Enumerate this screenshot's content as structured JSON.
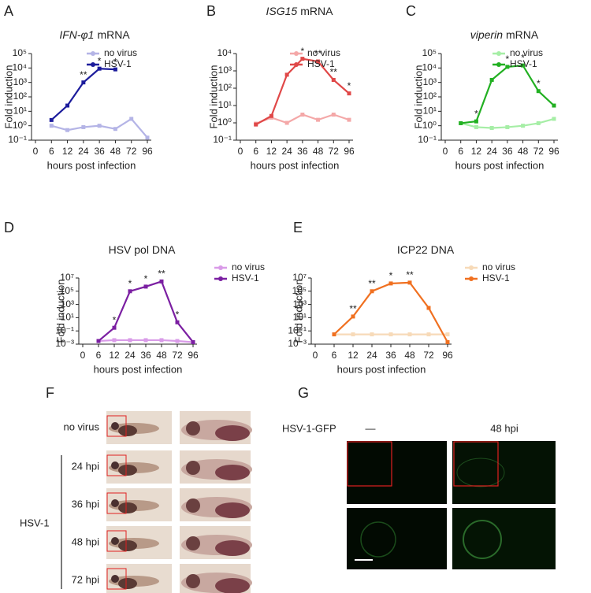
{
  "chart_data": [
    {
      "panel": "A",
      "type": "line",
      "title": [
        {
          "text": "IFN-φ1",
          "italic": true
        },
        {
          "text": "mRNA"
        }
      ],
      "xlabel": "hours post infection",
      "ylabel": "Fold induction",
      "yscale": "log",
      "categories": [
        "0",
        "6",
        "12",
        "24",
        "36",
        "48",
        "72",
        "96"
      ],
      "ylim": [
        0.1,
        100000
      ],
      "yticks": [
        {
          "value": 0.1,
          "label": "10⁻¹"
        },
        {
          "value": 1,
          "label": "10⁰"
        },
        {
          "value": 10,
          "label": "10¹"
        },
        {
          "value": 100,
          "label": "10²"
        },
        {
          "value": 1000,
          "label": "10³"
        },
        {
          "value": 10000,
          "label": "10⁴"
        },
        {
          "value": 100000,
          "label": "10⁵"
        }
      ],
      "legend": "top-right",
      "series": [
        {
          "name": "no virus",
          "color": "#b4b4e6",
          "values": [
            null,
            1,
            0.5,
            0.8,
            1,
            0.6,
            3,
            0.15
          ]
        },
        {
          "name": "HSV-1",
          "color": "#1c1c9c",
          "values": [
            null,
            2.5,
            25,
            1000,
            9000,
            8000,
            null,
            null
          ]
        }
      ],
      "annotations": [
        {
          "x": "24",
          "text": "**"
        },
        {
          "x": "36",
          "text": "*"
        },
        {
          "x": "48",
          "text": "*"
        }
      ]
    },
    {
      "panel": "B",
      "type": "line",
      "title": [
        {
          "text": "ISG15",
          "italic": true
        },
        {
          "text": "mRNA"
        }
      ],
      "xlabel": "hours post infection",
      "ylabel": "Fold induction",
      "yscale": "log",
      "categories": [
        "0",
        "6",
        "12",
        "24",
        "36",
        "48",
        "72",
        "96"
      ],
      "ylim": [
        0.1,
        10000
      ],
      "yticks": [
        {
          "value": 0.1,
          "label": "10⁻¹"
        },
        {
          "value": 1,
          "label": "10⁰"
        },
        {
          "value": 10,
          "label": "10¹"
        },
        {
          "value": 100,
          "label": "10²"
        },
        {
          "value": 1000,
          "label": "10³"
        },
        {
          "value": 10000,
          "label": "10⁴"
        }
      ],
      "legend": "top-right",
      "series": [
        {
          "name": "no virus",
          "color": "#f4a8a8",
          "values": [
            null,
            0.9,
            2,
            1,
            3,
            1.5,
            3,
            1.5
          ]
        },
        {
          "name": "HSV-1",
          "color": "#e04848",
          "values": [
            null,
            0.8,
            2.5,
            600,
            5000,
            3500,
            300,
            50
          ]
        }
      ],
      "annotations": [
        {
          "x": "36",
          "text": "*"
        },
        {
          "x": "48",
          "text": "**"
        },
        {
          "x": "72",
          "text": "**"
        },
        {
          "x": "96",
          "text": "*"
        }
      ]
    },
    {
      "panel": "C",
      "type": "line",
      "title": [
        {
          "text": "viperin",
          "italic": true
        },
        {
          "text": "mRNA"
        }
      ],
      "xlabel": "hours post infection",
      "ylabel": "Fold induction",
      "yscale": "log",
      "categories": [
        "0",
        "6",
        "12",
        "24",
        "36",
        "48",
        "72",
        "96"
      ],
      "ylim": [
        0.1,
        100000
      ],
      "yticks": [
        {
          "value": 0.1,
          "label": "10⁻¹"
        },
        {
          "value": 1,
          "label": "10⁰"
        },
        {
          "value": 10,
          "label": "10¹"
        },
        {
          "value": 100,
          "label": "10²"
        },
        {
          "value": 1000,
          "label": "10³"
        },
        {
          "value": 10000,
          "label": "10⁴"
        },
        {
          "value": 100000,
          "label": "10⁵"
        }
      ],
      "legend": "top-right",
      "series": [
        {
          "name": "no virus",
          "color": "#a6eea6",
          "values": [
            null,
            1.5,
            0.8,
            0.7,
            0.8,
            1,
            1.5,
            3
          ]
        },
        {
          "name": "HSV-1",
          "color": "#22b022",
          "values": [
            null,
            1.5,
            2,
            1500,
            12000,
            15000,
            250,
            25
          ]
        }
      ],
      "annotations": [
        {
          "x": "12",
          "text": "*",
          "color": "#999999"
        },
        {
          "x": "36",
          "text": "*"
        },
        {
          "x": "48",
          "text": "*"
        },
        {
          "x": "72",
          "text": "*"
        }
      ]
    },
    {
      "panel": "D",
      "type": "line",
      "title": [
        {
          "text": "HSV pol DNA"
        }
      ],
      "xlabel": "hours post infection",
      "ylabel": "Fold induction",
      "yscale": "log",
      "categories": [
        "0",
        "6",
        "12",
        "24",
        "36",
        "48",
        "72",
        "96"
      ],
      "ylim": [
        0.001,
        10000000
      ],
      "yticks": [
        {
          "value": 0.001,
          "label": "10⁻³"
        },
        {
          "value": 0.1,
          "label": "10⁻¹"
        },
        {
          "value": 10,
          "label": "10¹"
        },
        {
          "value": 1000,
          "label": "10³"
        },
        {
          "value": 100000,
          "label": "10⁵"
        },
        {
          "value": 10000000,
          "label": "10⁷"
        }
      ],
      "legend": "right",
      "series": [
        {
          "name": "no virus",
          "color": "#d99be8",
          "values": [
            null,
            0.003,
            0.004,
            0.004,
            0.004,
            0.004,
            0.003,
            0.002
          ]
        },
        {
          "name": "HSV-1",
          "color": "#7b1fa2",
          "values": [
            null,
            0.003,
            0.3,
            100000,
            500000,
            3000000,
            2,
            0.002
          ]
        }
      ],
      "annotations": [
        {
          "x": "12",
          "text": "*"
        },
        {
          "x": "24",
          "text": "*"
        },
        {
          "x": "36",
          "text": "*"
        },
        {
          "x": "48",
          "text": "**"
        },
        {
          "x": "72",
          "text": "*"
        }
      ]
    },
    {
      "panel": "E",
      "type": "line",
      "title": [
        {
          "text": "ICP22 DNA"
        }
      ],
      "xlabel": "hours post infection",
      "ylabel": "Fold induction",
      "yscale": "log",
      "categories": [
        "0",
        "6",
        "12",
        "24",
        "36",
        "48",
        "72",
        "96"
      ],
      "ylim": [
        0.001,
        10000000
      ],
      "yticks": [
        {
          "value": 0.001,
          "label": "10⁻³"
        },
        {
          "value": 0.1,
          "label": "10⁻¹"
        },
        {
          "value": 10,
          "label": "10¹"
        },
        {
          "value": 1000,
          "label": "10³"
        },
        {
          "value": 100000,
          "label": "10⁵"
        },
        {
          "value": 10000000,
          "label": "10⁷"
        }
      ],
      "legend": "right",
      "series": [
        {
          "name": "no virus",
          "color": "#f7dab8",
          "values": [
            null,
            0.03,
            0.03,
            0.03,
            0.03,
            0.03,
            0.03,
            0.03
          ]
        },
        {
          "name": "HSV-1",
          "color": "#f07020",
          "values": [
            null,
            0.03,
            15,
            100000,
            1500000,
            2000000,
            300,
            0.002
          ]
        }
      ],
      "annotations": [
        {
          "x": "12",
          "text": "**"
        },
        {
          "x": "24",
          "text": "**"
        },
        {
          "x": "36",
          "text": "*"
        },
        {
          "x": "48",
          "text": "**"
        }
      ]
    }
  ],
  "panel_f": {
    "label": "F",
    "rows": [
      "no virus",
      "24 hpi",
      "36 hpi",
      "48 hpi",
      "72 hpi"
    ],
    "group": "HSV-1"
  },
  "panel_g": {
    "label": "G",
    "row_label": "HSV-1-GFP",
    "columns": [
      "—",
      "48 hpi"
    ]
  }
}
